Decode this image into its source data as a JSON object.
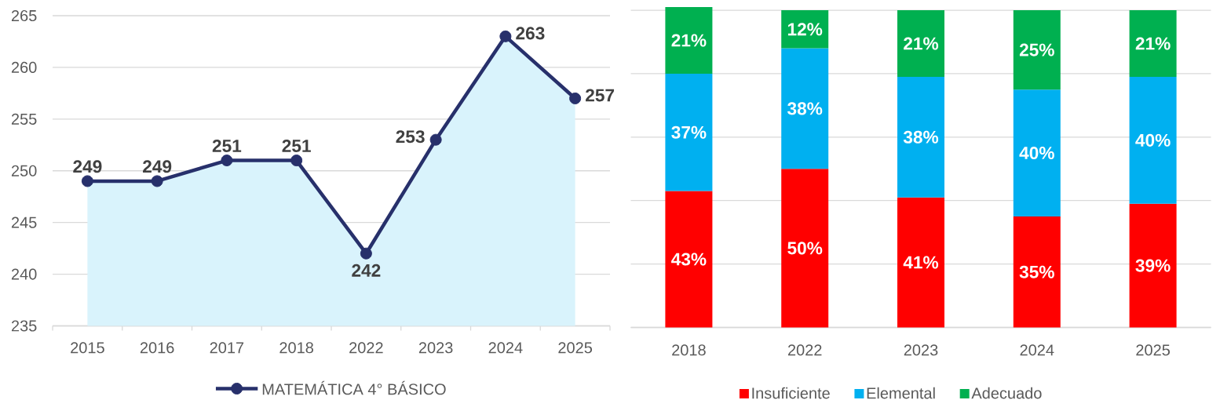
{
  "chart_data": [
    {
      "type": "line",
      "categories": [
        "2015",
        "2016",
        "2017",
        "2018",
        "2022",
        "2023",
        "2024",
        "2025"
      ],
      "series": [
        {
          "name": "MATEMÁTICA 4° BÁSICO",
          "color": "#27306b",
          "values": [
            249,
            249,
            251,
            251,
            242,
            253,
            263,
            257
          ],
          "lower": [
            235,
            235,
            235,
            235,
            235,
            235,
            235,
            235
          ],
          "upper": [
            249,
            249,
            251,
            251,
            242,
            253,
            263,
            257
          ],
          "value_labels": [
            "249",
            "249",
            "251",
            "251",
            "242",
            "253",
            "263",
            "257"
          ]
        }
      ],
      "ylim": [
        235,
        265
      ],
      "yticks": [
        235,
        240,
        245,
        250,
        255,
        260,
        265
      ],
      "grid": "y",
      "legend": "bottom",
      "marker": "circle",
      "line_style": "solid"
    },
    {
      "type": "bar",
      "stacked": true,
      "categories": [
        "2018",
        "2022",
        "2023",
        "2024",
        "2025"
      ],
      "series": [
        {
          "name": "Insuficiente",
          "color": "#ff0000",
          "values": [
            43,
            50,
            41,
            35,
            39
          ],
          "value_labels": [
            "43%",
            "50%",
            "41%",
            "35%",
            "39%"
          ]
        },
        {
          "name": "Elemental",
          "color": "#00b0f0",
          "values": [
            37,
            38,
            38,
            40,
            40
          ],
          "value_labels": [
            "37%",
            "38%",
            "38%",
            "40%",
            "40%"
          ]
        },
        {
          "name": "Adecuado",
          "color": "#00b050",
          "values": [
            21,
            12,
            21,
            25,
            21
          ],
          "value_labels": [
            "21%",
            "12%",
            "21%",
            "25%",
            "21%"
          ]
        }
      ],
      "ylim": [
        0,
        101
      ],
      "yticks": [
        0,
        20,
        40,
        60,
        80,
        100
      ],
      "tick_labels": "x",
      "grid": "y",
      "legend": "bottom"
    }
  ]
}
